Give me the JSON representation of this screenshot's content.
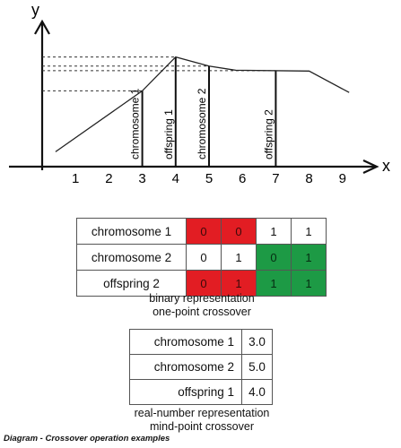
{
  "plot": {
    "y_axis_label": "y",
    "x_axis_label": "x",
    "x_ticks": [
      "1",
      "2",
      "3",
      "4",
      "5",
      "6",
      "7",
      "8",
      "9"
    ],
    "markers": [
      {
        "label": "chromosome 1",
        "x": 3
      },
      {
        "label": "offspring 1",
        "x": 4
      },
      {
        "label": "chromosome 2",
        "x": 5
      },
      {
        "label": "offspring 2",
        "x": 7
      }
    ],
    "curve": [
      {
        "x": 0.4,
        "y": 0.18
      },
      {
        "x": 3,
        "y": 0.92
      },
      {
        "x": 4,
        "y": 1.33
      },
      {
        "x": 5,
        "y": 1.22
      },
      {
        "x": 5.8,
        "y": 1.17
      },
      {
        "x": 8,
        "y": 1.16
      },
      {
        "x": 9.2,
        "y": 0.9
      }
    ],
    "y_max": 1.8,
    "x_max": 10.2
  },
  "binary_table": {
    "rows": [
      {
        "label": "chromosome 1",
        "bits": [
          "0",
          "0",
          "1",
          "1"
        ],
        "colors": [
          "red",
          "red",
          "none",
          "none"
        ]
      },
      {
        "label": "chromosome 2",
        "bits": [
          "0",
          "1",
          "0",
          "1"
        ],
        "colors": [
          "none",
          "none",
          "green",
          "green"
        ]
      },
      {
        "label": "offspring 2",
        "bits": [
          "0",
          "1",
          "1",
          "1"
        ],
        "colors": [
          "red",
          "red",
          "green",
          "green"
        ]
      }
    ],
    "caption_line1": "binary representation",
    "caption_line2": "one-point crossover"
  },
  "real_table": {
    "rows": [
      {
        "label": "chromosome 1",
        "value": "3.0"
      },
      {
        "label": "chromosome 2",
        "value": "5.0"
      },
      {
        "label": "offspring 1",
        "value": "4.0"
      }
    ],
    "caption_line1": "real-number representation",
    "caption_line2": "mind-point crossover"
  },
  "footnote": "Diagram - Crossover operation examples",
  "colors": {
    "red": "#e21d23",
    "green": "#1d9a45",
    "axis": "#111111"
  }
}
